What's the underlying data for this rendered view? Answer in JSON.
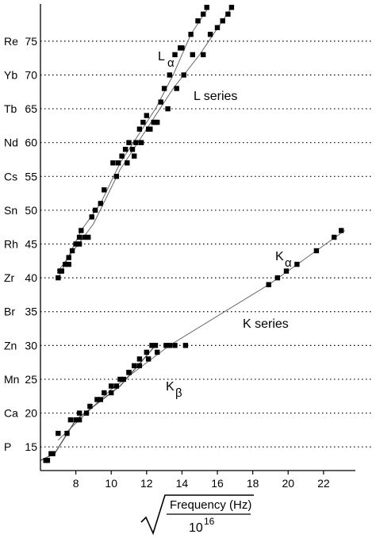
{
  "chart_data": {
    "type": "scatter",
    "title": "",
    "xlabel": {
      "numerator": "Frequency (Hz)",
      "denominator_base": "10",
      "denominator_exp": "16"
    },
    "xlim": [
      6.0,
      23.8
    ],
    "ylim": [
      11.5,
      80.5
    ],
    "x_ticks": [
      8,
      10,
      12,
      14,
      16,
      18,
      20,
      22
    ],
    "y_ticks": [
      {
        "value": 15,
        "label": "P"
      },
      {
        "value": 20,
        "label": "Ca"
      },
      {
        "value": 25,
        "label": "Mn"
      },
      {
        "value": 30,
        "label": "Zn"
      },
      {
        "value": 35,
        "label": "Br"
      },
      {
        "value": 40,
        "label": "Zr"
      },
      {
        "value": 45,
        "label": "Rh"
      },
      {
        "value": 50,
        "label": "Sn"
      },
      {
        "value": 55,
        "label": "Cs"
      },
      {
        "value": 60,
        "label": "Nd"
      },
      {
        "value": 65,
        "label": "Tb"
      },
      {
        "value": 70,
        "label": "Yb"
      },
      {
        "value": 75,
        "label": "Re"
      }
    ],
    "y_tick_numbers_note": "",
    "grid": "horizontal dotted at labeled y ticks",
    "annotations": {
      "l_alpha": {
        "main": "L",
        "sub": "α"
      },
      "l_series": "L series",
      "k_alpha": {
        "main": "K",
        "sub": "α"
      },
      "k_series": "K series",
      "k_beta": {
        "main": "K",
        "sub": "β"
      }
    },
    "series": [
      {
        "points": [
          [
            6.3,
            13
          ],
          [
            6.4,
            13
          ],
          [
            6.6,
            14
          ],
          [
            6.7,
            14
          ],
          [
            7.0,
            17
          ],
          [
            7.7,
            19
          ],
          [
            8.0,
            19
          ],
          [
            8.2,
            20
          ],
          [
            8.6,
            20
          ],
          [
            9.2,
            22
          ],
          [
            9.6,
            23
          ],
          [
            10.0,
            23
          ],
          [
            10.3,
            24
          ],
          [
            10.7,
            25
          ],
          [
            11.0,
            26
          ],
          [
            11.3,
            27
          ],
          [
            11.6,
            28
          ],
          [
            12.0,
            29
          ],
          [
            12.3,
            30
          ],
          [
            12.5,
            30
          ]
        ],
        "line": [
          [
            6.0,
            13
          ],
          [
            6.8,
            14
          ],
          [
            8.0,
            19
          ],
          [
            10.5,
            24
          ],
          [
            12.5,
            30
          ]
        ]
      },
      {
        "points": [
          [
            7.5,
            17
          ],
          [
            8.2,
            19
          ],
          [
            8.8,
            21
          ],
          [
            9.4,
            22
          ],
          [
            10.0,
            24
          ],
          [
            10.5,
            25
          ],
          [
            11.0,
            26
          ],
          [
            11.6,
            27
          ],
          [
            12.1,
            28
          ],
          [
            12.6,
            29
          ],
          [
            13.1,
            30
          ],
          [
            13.3,
            30
          ],
          [
            13.6,
            30
          ],
          [
            14.2,
            30
          ]
        ],
        "line": [
          [
            7.0,
            16
          ],
          [
            10.0,
            23.5
          ],
          [
            13.3,
            30
          ]
        ]
      },
      {
        "points": [
          [
            18.9,
            39
          ],
          [
            19.4,
            40
          ],
          [
            19.9,
            41
          ],
          [
            20.5,
            42
          ],
          [
            21.6,
            44
          ],
          [
            22.6,
            46
          ],
          [
            23.0,
            47
          ]
        ],
        "line": [
          [
            13.3,
            30
          ],
          [
            18.9,
            39
          ],
          [
            23.2,
            47
          ]
        ]
      },
      {
        "points": [
          [
            7.0,
            40
          ],
          [
            7.2,
            41
          ],
          [
            7.4,
            42
          ],
          [
            7.6,
            42
          ],
          [
            7.8,
            44
          ],
          [
            8.0,
            45
          ],
          [
            8.2,
            46
          ],
          [
            8.3,
            47
          ],
          [
            8.5,
            46
          ],
          [
            8.7,
            46
          ],
          [
            9.1,
            50
          ],
          [
            9.4,
            51
          ],
          [
            10.1,
            57
          ],
          [
            10.4,
            57
          ],
          [
            10.6,
            58
          ],
          [
            10.8,
            59
          ],
          [
            11.0,
            60
          ],
          [
            11.2,
            59
          ],
          [
            11.4,
            60
          ],
          [
            11.6,
            62
          ],
          [
            11.8,
            63
          ],
          [
            12.0,
            64
          ],
          [
            12.2,
            62
          ],
          [
            12.4,
            63
          ],
          [
            12.6,
            63
          ],
          [
            12.8,
            66
          ],
          [
            13.0,
            68
          ],
          [
            13.3,
            70
          ],
          [
            13.6,
            73
          ],
          [
            13.9,
            74
          ],
          [
            14.0,
            74
          ],
          [
            14.5,
            76
          ],
          [
            14.9,
            78
          ],
          [
            15.2,
            79
          ],
          [
            15.4,
            80
          ]
        ],
        "line": [
          [
            7.0,
            40
          ],
          [
            8.3,
            47
          ],
          [
            9.4,
            51
          ],
          [
            10.5,
            57
          ],
          [
            11.5,
            61
          ],
          [
            12.5,
            65
          ],
          [
            13.5,
            70
          ],
          [
            14.5,
            76
          ],
          [
            15.5,
            80
          ]
        ]
      },
      {
        "points": [
          [
            7.1,
            41
          ],
          [
            7.6,
            43
          ],
          [
            8.2,
            45
          ],
          [
            8.9,
            49
          ],
          [
            9.6,
            53
          ],
          [
            10.3,
            55
          ],
          [
            10.9,
            57
          ],
          [
            11.3,
            58
          ],
          [
            11.7,
            60
          ],
          [
            12.1,
            62
          ],
          [
            12.5,
            63
          ],
          [
            13.2,
            65
          ],
          [
            13.7,
            68
          ],
          [
            14.1,
            70
          ],
          [
            14.6,
            73
          ],
          [
            15.2,
            73
          ],
          [
            15.6,
            76
          ],
          [
            16.0,
            77
          ],
          [
            16.3,
            78
          ],
          [
            16.6,
            79
          ],
          [
            16.8,
            80
          ]
        ],
        "line": [
          [
            7.0,
            41
          ],
          [
            9.0,
            48
          ],
          [
            10.5,
            56
          ],
          [
            12.0,
            62
          ],
          [
            13.5,
            68
          ],
          [
            15.0,
            73
          ],
          [
            16.8,
            80
          ]
        ]
      }
    ]
  }
}
